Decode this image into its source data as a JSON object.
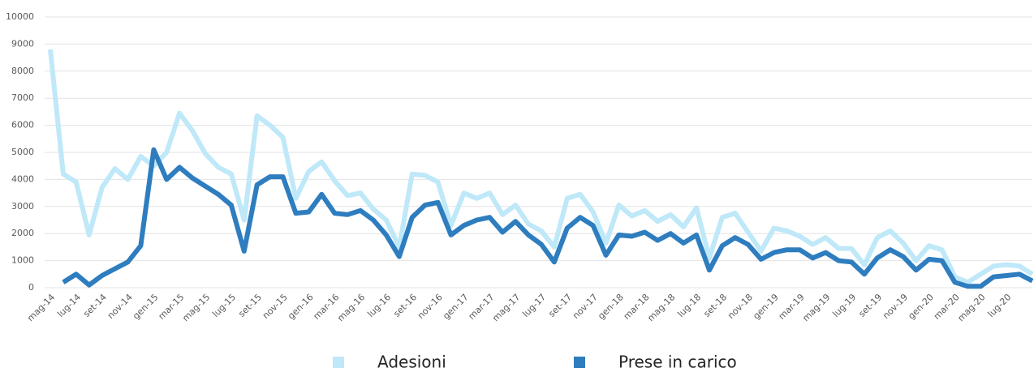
{
  "chart_data": {
    "type": "line",
    "categories": [
      "mag-14",
      null,
      "lug-14",
      null,
      "set-14",
      null,
      "nov-14",
      null,
      "gen-15",
      null,
      "mar-15",
      null,
      "mag-15",
      null,
      "lug-15",
      null,
      "set-15",
      null,
      "nov-15",
      null,
      "gen-16",
      null,
      "mar-16",
      null,
      "mag-16",
      null,
      "lug-16",
      null,
      "set-16",
      null,
      "nov-16",
      null,
      "gen-17",
      null,
      "mar-17",
      null,
      "mag-17",
      null,
      "lug-17",
      null,
      "set-17",
      null,
      "nov-17",
      null,
      "gen-18",
      null,
      "mar-18",
      null,
      "mag-18",
      null,
      "lug-18",
      null,
      "set-18",
      null,
      "nov-18",
      null,
      "gen-19",
      null,
      "mar-19",
      null,
      "mag-19",
      null,
      "lug-19",
      null,
      "set-19",
      null,
      "nov-19",
      null,
      "gen-20",
      null,
      "mar-20",
      null,
      "mag-20",
      null,
      "lug-20",
      null,
      null
    ],
    "series": [
      {
        "name": "Adesioni",
        "color": "#bfe8f8",
        "values": [
          8800,
          4200,
          3900,
          1950,
          3700,
          4400,
          4000,
          4850,
          4500,
          5000,
          6450,
          5800,
          4950,
          4450,
          4200,
          2500,
          6350,
          6000,
          5550,
          3300,
          4300,
          4650,
          3950,
          3400,
          3500,
          2900,
          2500,
          1500,
          4200,
          4150,
          3900,
          2300,
          3500,
          3300,
          3500,
          2700,
          3050,
          2350,
          2100,
          1500,
          3300,
          3450,
          2800,
          1650,
          3050,
          2650,
          2850,
          2450,
          2700,
          2250,
          2950,
          1100,
          2600,
          2750,
          2050,
          1350,
          2200,
          2100,
          1900,
          1600,
          1850,
          1450,
          1450,
          850,
          1850,
          2100,
          1650,
          1000,
          1550,
          1400,
          400,
          200,
          500,
          800,
          850,
          800,
          500
        ]
      },
      {
        "name": "Prese in carico",
        "color": "#2e7dbf",
        "values": [
          null,
          200,
          500,
          100,
          450,
          700,
          950,
          1550,
          5100,
          4000,
          4450,
          4050,
          3750,
          3450,
          3050,
          1350,
          3800,
          4100,
          4100,
          2750,
          2800,
          3450,
          2750,
          2700,
          2850,
          2500,
          1950,
          1150,
          2600,
          3050,
          3150,
          1950,
          2300,
          2500,
          2600,
          2050,
          2450,
          1950,
          1600,
          950,
          2200,
          2600,
          2300,
          1200,
          1950,
          1900,
          2050,
          1750,
          2000,
          1650,
          1950,
          650,
          1550,
          1850,
          1600,
          1050,
          1300,
          1400,
          1400,
          1100,
          1300,
          1000,
          950,
          500,
          1100,
          1400,
          1150,
          650,
          1050,
          1000,
          200,
          50,
          50,
          400,
          450,
          500,
          250
        ]
      }
    ],
    "ylim": [
      0,
      10000
    ],
    "yticks": [
      0,
      1000,
      2000,
      3000,
      4000,
      5000,
      6000,
      7000,
      8000,
      9000,
      10000
    ],
    "grid": true,
    "legend": "bottom"
  }
}
